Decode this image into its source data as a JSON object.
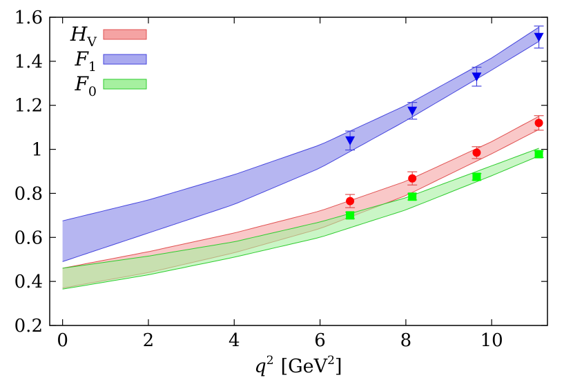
{
  "chart_data": {
    "type": "line",
    "xlabel": {
      "var": "q",
      "var_sup": "2",
      "unit_open": "[GeV",
      "unit_sup": "2",
      "unit_close": "]"
    },
    "ylabel": "",
    "xlim": [
      -0.3,
      11.3
    ],
    "ylim": [
      0.2,
      1.6
    ],
    "xticks": [
      0,
      2,
      4,
      6,
      8,
      10
    ],
    "yticks": [
      0.2,
      0.4,
      0.6,
      0.8,
      1,
      1.2,
      1.4,
      1.6
    ],
    "ytick_labels": [
      "0.2",
      "0.4",
      "0.6",
      "0.8",
      "1",
      "1.2",
      "1.4",
      "1.6"
    ],
    "grid": false,
    "legend_position": "top-left",
    "series": [
      {
        "key": "HV",
        "name_main": "H",
        "name_sub": "V",
        "fill": "#f5a3a3",
        "edge": "#e05050",
        "marker_color": "#ff0000",
        "marker": "circle",
        "band": {
          "lower": [
            [
              0,
              0.37
            ],
            [
              2,
              0.44
            ],
            [
              4,
              0.53
            ],
            [
              6,
              0.64
            ],
            [
              8,
              0.79
            ],
            [
              10,
              0.98
            ],
            [
              11.1,
              1.09
            ]
          ],
          "upper": [
            [
              0,
              0.46
            ],
            [
              2,
              0.535
            ],
            [
              4,
              0.62
            ],
            [
              6,
              0.72
            ],
            [
              8,
              0.855
            ],
            [
              10,
              1.035
            ],
            [
              11.1,
              1.15
            ]
          ]
        },
        "points": [
          {
            "x": 6.7,
            "y": 0.765,
            "err": 0.03
          },
          {
            "x": 8.15,
            "y": 0.868,
            "err": 0.03
          },
          {
            "x": 9.65,
            "y": 0.985,
            "err": 0.027
          },
          {
            "x": 11.1,
            "y": 1.12,
            "err": 0.033
          }
        ]
      },
      {
        "key": "F1",
        "name_main": "F",
        "name_sub": "1",
        "fill": "#a9a9ef",
        "edge": "#4444dd",
        "marker_color": "#0000ee",
        "marker": "triangle-down",
        "band": {
          "lower": [
            [
              0,
              0.49
            ],
            [
              2,
              0.62
            ],
            [
              4,
              0.75
            ],
            [
              6,
              0.915
            ],
            [
              8,
              1.13
            ],
            [
              10,
              1.36
            ],
            [
              11.1,
              1.49
            ]
          ],
          "upper": [
            [
              0,
              0.675
            ],
            [
              2,
              0.77
            ],
            [
              4,
              0.885
            ],
            [
              6,
              1.02
            ],
            [
              8,
              1.2
            ],
            [
              10,
              1.415
            ],
            [
              11.1,
              1.555
            ]
          ]
        },
        "points": [
          {
            "x": 6.7,
            "y": 1.04,
            "err": 0.043
          },
          {
            "x": 8.15,
            "y": 1.175,
            "err": 0.038
          },
          {
            "x": 9.65,
            "y": 1.33,
            "err": 0.043
          },
          {
            "x": 11.1,
            "y": 1.51,
            "err": 0.05
          }
        ]
      },
      {
        "key": "F0",
        "name_main": "F",
        "name_sub": "0",
        "fill": "#a6f0a0",
        "edge": "#2ecc2e",
        "marker_color": "#00ff00",
        "marker": "square",
        "band": {
          "lower": [
            [
              0,
              0.365
            ],
            [
              2,
              0.43
            ],
            [
              4,
              0.51
            ],
            [
              6,
              0.6
            ],
            [
              8,
              0.725
            ],
            [
              10,
              0.88
            ],
            [
              11.1,
              0.97
            ]
          ],
          "upper": [
            [
              0,
              0.46
            ],
            [
              2,
              0.515
            ],
            [
              4,
              0.58
            ],
            [
              6,
              0.67
            ],
            [
              8,
              0.78
            ],
            [
              10,
              0.925
            ],
            [
              11.1,
              1.005
            ]
          ]
        },
        "points": [
          {
            "x": 6.7,
            "y": 0.7,
            "err": 0.015
          },
          {
            "x": 8.15,
            "y": 0.785,
            "err": 0.015
          },
          {
            "x": 9.65,
            "y": 0.875,
            "err": 0.015
          },
          {
            "x": 11.1,
            "y": 0.978,
            "err": 0.015
          }
        ]
      }
    ]
  }
}
